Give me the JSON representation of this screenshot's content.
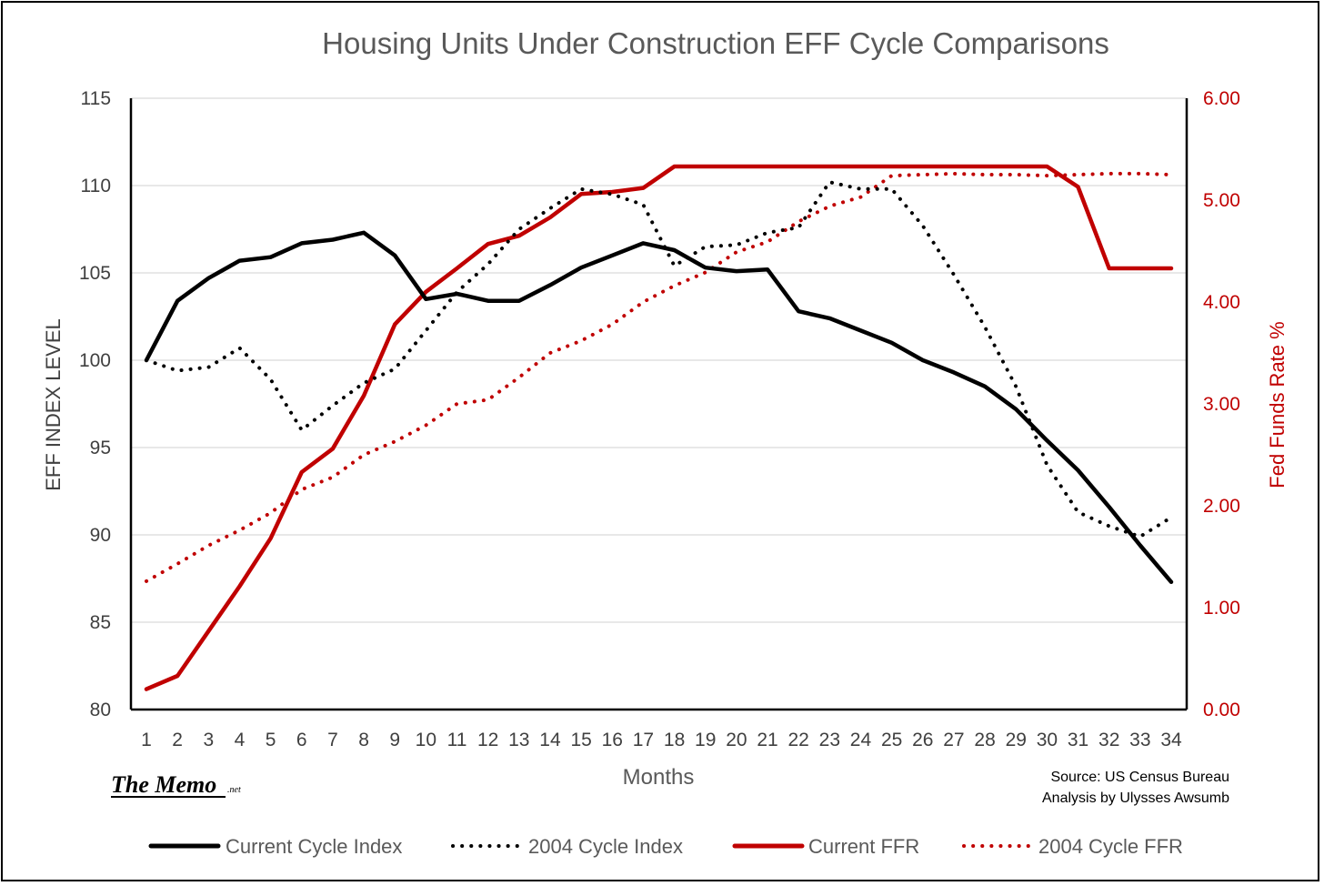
{
  "chart_data": {
    "type": "line",
    "title": "Housing Units Under Construction EFF Cycle Comparisons",
    "xlabel": "Months",
    "ylabel_left": "EFF INDEX LEVEL",
    "ylabel_right": "Fed Funds Rate %",
    "x": [
      1,
      2,
      3,
      4,
      5,
      6,
      7,
      8,
      9,
      10,
      11,
      12,
      13,
      14,
      15,
      16,
      17,
      18,
      19,
      20,
      21,
      22,
      23,
      24,
      25,
      26,
      27,
      28,
      29,
      30,
      31,
      32,
      33,
      34
    ],
    "x_tick_labels": [
      "1",
      "2",
      "3",
      "4",
      "5",
      "6",
      "7",
      "8",
      "9",
      "10",
      "11",
      "12",
      "13",
      "14",
      "15",
      "16",
      "17",
      "18",
      "19",
      "20",
      "21",
      "22",
      "23",
      "24",
      "25",
      "26",
      "27",
      "28",
      "29",
      "30",
      "31",
      "32",
      "33",
      "34"
    ],
    "ylim_left": [
      80,
      115
    ],
    "ylim_right": [
      0,
      6
    ],
    "y_left_ticks": [
      "80",
      "85",
      "90",
      "95",
      "100",
      "105",
      "110",
      "115"
    ],
    "y_right_ticks": [
      "0.00",
      "1.00",
      "2.00",
      "3.00",
      "4.00",
      "5.00",
      "6.00"
    ],
    "grid": "horizontal",
    "legend_position": "bottom",
    "series": [
      {
        "name": "Current Cycle Index",
        "axis": "left",
        "color": "#000000",
        "style": "solid",
        "values": [
          100.0,
          103.4,
          104.7,
          105.7,
          105.9,
          106.7,
          106.9,
          107.3,
          106.0,
          103.5,
          103.8,
          103.4,
          103.4,
          104.3,
          105.3,
          106.0,
          106.7,
          106.3,
          105.3,
          105.1,
          105.2,
          102.8,
          102.4,
          101.7,
          101.0,
          100.0,
          99.3,
          98.5,
          97.2,
          95.4,
          93.7,
          91.6,
          89.4,
          87.3
        ]
      },
      {
        "name": "2004 Cycle Index",
        "axis": "left",
        "color": "#000000",
        "style": "dotted",
        "values": [
          100.0,
          99.4,
          99.6,
          100.7,
          98.9,
          96.0,
          97.4,
          98.7,
          99.5,
          101.7,
          103.9,
          105.5,
          107.5,
          108.7,
          109.8,
          109.5,
          108.9,
          105.4,
          106.5,
          106.6,
          107.3,
          107.6,
          110.2,
          109.8,
          109.8,
          107.7,
          104.9,
          101.9,
          98.5,
          94.0,
          91.3,
          90.5,
          89.9,
          91.0
        ]
      },
      {
        "name": "Current FFR",
        "axis": "right",
        "color": "#c00000",
        "style": "solid",
        "values": [
          0.2,
          0.33,
          0.77,
          1.21,
          1.68,
          2.33,
          2.56,
          3.08,
          3.78,
          4.1,
          4.33,
          4.57,
          4.65,
          4.83,
          5.06,
          5.08,
          5.12,
          5.33,
          5.33,
          5.33,
          5.33,
          5.33,
          5.33,
          5.33,
          5.33,
          5.33,
          5.33,
          5.33,
          5.33,
          5.33,
          5.13,
          4.33,
          4.33,
          4.33
        ]
      },
      {
        "name": "2004 Cycle FFR",
        "axis": "right",
        "color": "#c00000",
        "style": "dotted",
        "values": [
          1.26,
          1.43,
          1.61,
          1.76,
          1.93,
          2.16,
          2.28,
          2.5,
          2.63,
          2.79,
          3.0,
          3.04,
          3.26,
          3.5,
          3.62,
          3.78,
          4.0,
          4.16,
          4.29,
          4.49,
          4.59,
          4.79,
          4.94,
          5.03,
          5.24,
          5.25,
          5.26,
          5.25,
          5.25,
          5.24,
          5.25,
          5.26,
          5.26,
          5.25
        ]
      }
    ]
  },
  "source": {
    "line1": "Source: US Census Bureau",
    "line2": "Analysis by Ulysses Awsumb"
  },
  "logo": {
    "main": "The Memo",
    "suffix": ".net"
  }
}
